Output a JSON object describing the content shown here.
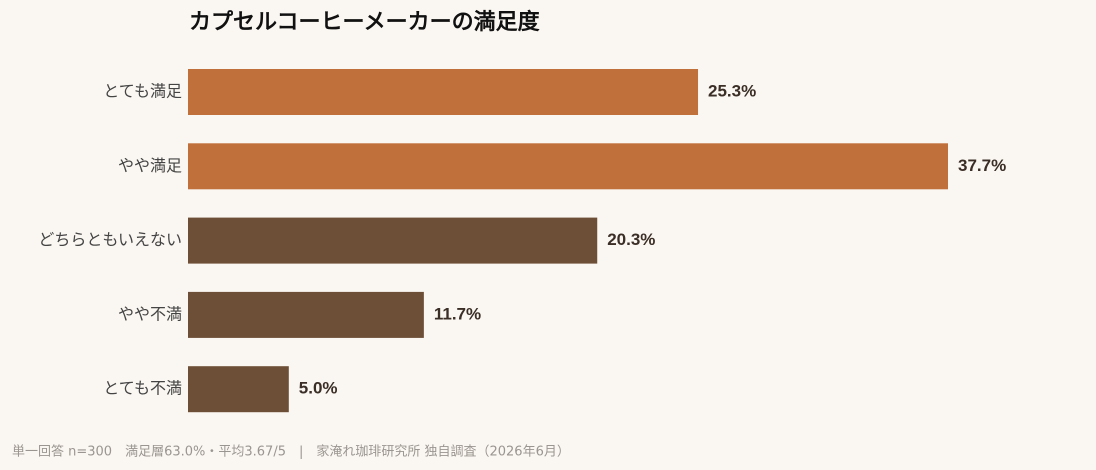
{
  "chart_data": {
    "type": "barh",
    "title": "カプセルコーヒーメーカーの満足度",
    "categories": [
      "とても満足",
      "やや満足",
      "どちらともいえない",
      "やや不満",
      "とても不満"
    ],
    "values": [
      25.3,
      37.7,
      20.3,
      11.7,
      5.0
    ],
    "value_labels": [
      "25.3%",
      "37.7%",
      "20.3%",
      "11.7%",
      "5.0%"
    ],
    "colors": [
      "#c0703b",
      "#c0703b",
      "#6d4e36",
      "#6d4e36",
      "#6d4e36"
    ],
    "footnote": "単一回答 n=300　満足層63.0%・平均3.67/5　|　家淹れ珈琲研究所 独自調査（2026年6月）"
  }
}
